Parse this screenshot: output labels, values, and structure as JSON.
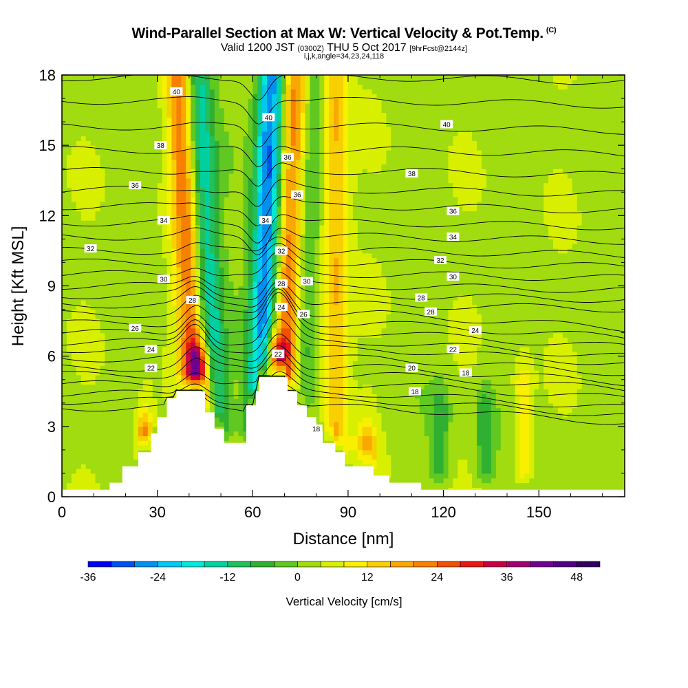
{
  "header": {
    "title": "Wind-Parallel Section at Max W: Vertical Velocity & Pot.Temp.",
    "copyright": "(C)",
    "valid_prefix": "Valid 1200 JST",
    "utc": "(0300Z)",
    "valid_date": "THU 5 Oct 2017",
    "forecast": "[9hrFcst@2144z]",
    "indices": "i,j,k,angle=34,23,24,118"
  },
  "chart_data": {
    "type": "heatmap",
    "xlabel": "Distance [nm]",
    "ylabel": "Height [Kft MSL]",
    "xlim": [
      0,
      177
    ],
    "ylim": [
      0,
      18
    ],
    "x_ticks": [
      "0",
      "30",
      "60",
      "90",
      "120",
      "150"
    ],
    "x_tick_values": [
      0,
      30,
      60,
      90,
      120,
      150
    ],
    "y_ticks": [
      "0",
      "3",
      "6",
      "9",
      "12",
      "15",
      "18"
    ],
    "y_tick_values": [
      0,
      3,
      6,
      9,
      12,
      15,
      18
    ],
    "colorbar": {
      "label": "Vertical Velocity [cm/s]",
      "min": -36,
      "max": 52,
      "step": 4,
      "tick_labels": [
        "-36",
        "-24",
        "-12",
        "0",
        "12",
        "24",
        "36",
        "48"
      ],
      "tick_values": [
        -36,
        -24,
        -12,
        0,
        12,
        24,
        36,
        48
      ],
      "colors": [
        "#0000f0",
        "#0050f0",
        "#0090f0",
        "#00c8f0",
        "#00e8d8",
        "#00d0a0",
        "#20c060",
        "#30b030",
        "#60c820",
        "#a0dc10",
        "#d8f000",
        "#f8f000",
        "#f8d000",
        "#f8a800",
        "#f88000",
        "#f05000",
        "#e81818",
        "#c80040",
        "#a00070",
        "#700090",
        "#500080",
        "#300060"
      ]
    },
    "terrain_kft": [
      [
        0,
        0.3
      ],
      [
        15,
        0.3
      ],
      [
        15,
        0.6
      ],
      [
        19,
        0.6
      ],
      [
        19,
        1.3
      ],
      [
        24,
        1.3
      ],
      [
        24,
        1.9
      ],
      [
        28,
        1.9
      ],
      [
        28,
        2.7
      ],
      [
        30,
        2.7
      ],
      [
        30,
        3.4
      ],
      [
        33,
        3.4
      ],
      [
        33,
        4.2
      ],
      [
        36,
        4.2
      ],
      [
        36,
        4.5
      ],
      [
        45,
        4.5
      ],
      [
        45,
        3.6
      ],
      [
        48,
        3.6
      ],
      [
        48,
        2.9
      ],
      [
        51,
        2.9
      ],
      [
        51,
        2.3
      ],
      [
        58,
        2.3
      ],
      [
        58,
        3.9
      ],
      [
        61,
        3.9
      ],
      [
        61,
        4.5
      ],
      [
        62,
        4.5
      ],
      [
        62,
        5.1
      ],
      [
        71,
        5.1
      ],
      [
        71,
        4.5
      ],
      [
        74,
        4.5
      ],
      [
        74,
        3.9
      ],
      [
        77,
        3.9
      ],
      [
        77,
        3.4
      ],
      [
        80,
        3.4
      ],
      [
        80,
        2.8
      ],
      [
        82,
        2.8
      ],
      [
        82,
        2.3
      ],
      [
        86,
        2.3
      ],
      [
        86,
        1.9
      ],
      [
        89,
        1.9
      ],
      [
        89,
        1.3
      ],
      [
        98,
        1.3
      ],
      [
        98,
        0.9
      ],
      [
        103,
        0.9
      ],
      [
        103,
        0.6
      ],
      [
        113,
        0.6
      ],
      [
        113,
        0.3
      ],
      [
        177,
        0.3
      ]
    ],
    "updrafts": [
      {
        "x": 41,
        "top": 18,
        "width": 3,
        "peak": 20
      },
      {
        "x": 43,
        "top": 6,
        "width": 2.5,
        "peak": 28
      },
      {
        "x": 67,
        "top": 6.5,
        "width": 3,
        "peak": 24
      },
      {
        "x": 71,
        "top": 18,
        "width": 3,
        "peak": 22
      },
      {
        "x": 86,
        "top": 18,
        "width": 3,
        "peak": 14
      },
      {
        "x": 26,
        "top": 3,
        "width": 2,
        "peak": 20
      },
      {
        "x": 96,
        "top": 2.5,
        "width": 2,
        "peak": 14
      },
      {
        "x": 145,
        "top": 5,
        "width": 2,
        "peak": 10
      }
    ],
    "downdrafts": [
      {
        "x": 47,
        "top": 18,
        "width": 3,
        "peak": -18
      },
      {
        "x": 63,
        "top": 18,
        "width": 3,
        "peak": -32
      },
      {
        "x": 75,
        "top": 18,
        "width": 3,
        "peak": -10
      },
      {
        "x": 119,
        "top": 4,
        "width": 2,
        "peak": -9
      },
      {
        "x": 133,
        "top": 4,
        "width": 2,
        "peak": -10
      }
    ],
    "isentropes": [
      {
        "theta": 16,
        "base_kft": 3.8
      },
      {
        "theta": 17,
        "base_kft": 4.1
      },
      {
        "theta": 18,
        "base_kft": 4.4
      },
      {
        "theta": 19,
        "base_kft": 4.8
      },
      {
        "theta": 20,
        "base_kft": 5.2
      },
      {
        "theta": 21,
        "base_kft": 5.5
      },
      {
        "theta": 22,
        "base_kft": 5.9
      },
      {
        "theta": 23,
        "base_kft": 6.3
      },
      {
        "theta": 24,
        "base_kft": 6.6
      },
      {
        "theta": 25,
        "base_kft": 7.0
      },
      {
        "theta": 26,
        "base_kft": 7.4
      },
      {
        "theta": 27,
        "base_kft": 7.8
      },
      {
        "theta": 28,
        "base_kft": 8.2
      },
      {
        "theta": 29,
        "base_kft": 8.6
      },
      {
        "theta": 30,
        "base_kft": 9.0
      },
      {
        "theta": 31,
        "base_kft": 9.5
      },
      {
        "theta": 32,
        "base_kft": 10.0
      },
      {
        "theta": 33,
        "base_kft": 10.5
      },
      {
        "theta": 34,
        "base_kft": 11.1
      },
      {
        "theta": 35,
        "base_kft": 11.7
      },
      {
        "theta": 36,
        "base_kft": 12.4
      },
      {
        "theta": 37,
        "base_kft": 13.1
      },
      {
        "theta": 38,
        "base_kft": 13.9
      },
      {
        "theta": 39,
        "base_kft": 14.8
      },
      {
        "theta": 40,
        "base_kft": 15.8
      },
      {
        "theta": 41,
        "base_kft": 16.9
      },
      {
        "theta": 42,
        "base_kft": 17.9
      }
    ],
    "contour_labels": [
      {
        "text": "40",
        "x": 36,
        "y": 17.3
      },
      {
        "text": "38",
        "x": 31,
        "y": 15.0
      },
      {
        "text": "36",
        "x": 23,
        "y": 13.3
      },
      {
        "text": "34",
        "x": 32,
        "y": 11.8
      },
      {
        "text": "32",
        "x": 9,
        "y": 10.6
      },
      {
        "text": "30",
        "x": 32,
        "y": 9.3
      },
      {
        "text": "28",
        "x": 41,
        "y": 8.4
      },
      {
        "text": "26",
        "x": 23,
        "y": 7.2
      },
      {
        "text": "24",
        "x": 28,
        "y": 6.3
      },
      {
        "text": "22",
        "x": 28,
        "y": 5.5
      },
      {
        "text": "40",
        "x": 65,
        "y": 16.2
      },
      {
        "text": "36",
        "x": 71,
        "y": 14.5
      },
      {
        "text": "36",
        "x": 74,
        "y": 12.9
      },
      {
        "text": "34",
        "x": 64,
        "y": 11.8
      },
      {
        "text": "32",
        "x": 69,
        "y": 10.5
      },
      {
        "text": "28",
        "x": 69,
        "y": 9.1
      },
      {
        "text": "30",
        "x": 77,
        "y": 9.2
      },
      {
        "text": "24",
        "x": 69,
        "y": 8.1
      },
      {
        "text": "26",
        "x": 76,
        "y": 7.8
      },
      {
        "text": "22",
        "x": 68,
        "y": 6.1
      },
      {
        "text": "18",
        "x": 80,
        "y": 2.9
      },
      {
        "text": "40",
        "x": 121,
        "y": 15.9
      },
      {
        "text": "38",
        "x": 110,
        "y": 13.8
      },
      {
        "text": "36",
        "x": 123,
        "y": 12.2
      },
      {
        "text": "34",
        "x": 123,
        "y": 11.1
      },
      {
        "text": "32",
        "x": 119,
        "y": 10.1
      },
      {
        "text": "30",
        "x": 123,
        "y": 9.4
      },
      {
        "text": "28",
        "x": 113,
        "y": 8.5
      },
      {
        "text": "28",
        "x": 116,
        "y": 7.9
      },
      {
        "text": "24",
        "x": 130,
        "y": 7.1
      },
      {
        "text": "22",
        "x": 123,
        "y": 6.3
      },
      {
        "text": "20",
        "x": 110,
        "y": 5.5
      },
      {
        "text": "18",
        "x": 127,
        "y": 5.3
      },
      {
        "text": "18",
        "x": 111,
        "y": 4.5
      }
    ]
  }
}
